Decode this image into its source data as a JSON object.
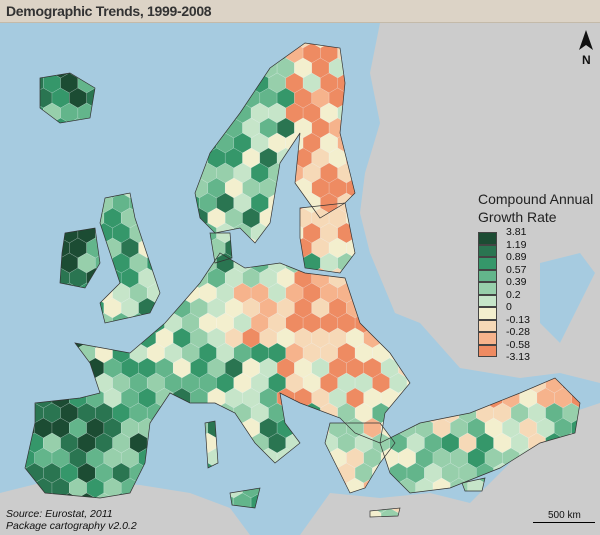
{
  "title": "Demographic Trends, 1999-2008",
  "legend": {
    "title_line1": "Compound Annual",
    "title_line2": "Growth Rate",
    "breaks": [
      "3.81",
      "1.19",
      "0.89",
      "0.57",
      "0.39",
      "0.2",
      "0",
      "-0.13",
      "-0.28",
      "-0.58",
      "-3.13"
    ],
    "colors": [
      "#1c4c33",
      "#2a7551",
      "#35976a",
      "#63b58b",
      "#97cfab",
      "#c6e5c9",
      "#f3efce",
      "#f6d9b7",
      "#f6b38c",
      "#ee8b62"
    ]
  },
  "north_arrow": {
    "label": "N",
    "icon": "north-arrow-icon"
  },
  "source": {
    "line1": "Source: Eurostat, 2011",
    "line2": "Package cartography v2.0.2"
  },
  "scale_bar": {
    "label": "500 km"
  },
  "map_colors": {
    "sea": "#a6cbe0",
    "land_outside": "#cccccc",
    "title_bar": "#dcd3c6"
  }
}
